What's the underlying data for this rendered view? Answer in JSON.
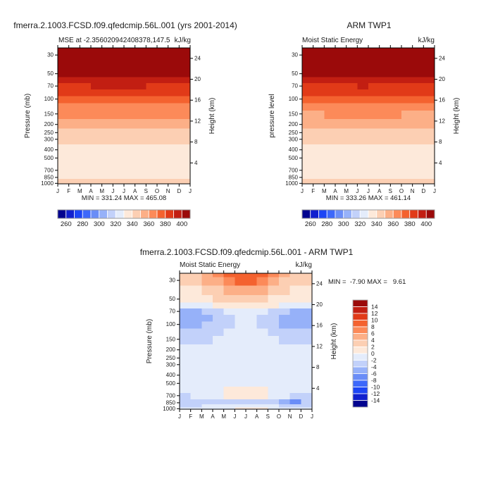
{
  "palette": [
    "#02038F",
    "#1020CE",
    "#1C45F5",
    "#3D68FA",
    "#6A8DF7",
    "#96B1F9",
    "#C2D1FA",
    "#E4ECFB",
    "#FDE9DA",
    "#FCCFB3",
    "#FCAF87",
    "#FC8A59",
    "#F4622F",
    "#E13A18",
    "#C21E12",
    "#9B0A0A"
  ],
  "frame_color": "#000000",
  "colorbar_border": "#999999",
  "chart_data": [
    {
      "id": "model-panel",
      "type": "contour",
      "title": "fmerra.2.1003.FCSD.f09.qfedcmip.56L.001 (yrs 2001-2014)",
      "subtitle_left": "MSE at -2.356020942408378,147.5",
      "subtitle_right": "kJ/kg",
      "stats": "MIN = 331.24 MAX = 465.08",
      "ylabel_left": "Pressure (mb)",
      "ylabel_right": "Height (km)",
      "x_tick_labels": [
        "J",
        "F",
        "M",
        "A",
        "M",
        "J",
        "J",
        "A",
        "S",
        "O",
        "N",
        "D",
        "J"
      ],
      "pressure_ticks": [
        30,
        50,
        70,
        100,
        150,
        200,
        250,
        300,
        400,
        500,
        700,
        850,
        1000
      ],
      "height_ticks": [
        4,
        8,
        12,
        16,
        20,
        24
      ],
      "colorbar": {
        "orientation": "horizontal",
        "boundaries": [
          260,
          270,
          280,
          290,
          300,
          310,
          320,
          330,
          340,
          350,
          360,
          370,
          380,
          390,
          400
        ],
        "labels": [
          260,
          280,
          300,
          320,
          340,
          360,
          380,
          400
        ]
      },
      "levels_mb": [
        25,
        30,
        40,
        50,
        60,
        70,
        85,
        100,
        125,
        150,
        200,
        250,
        300,
        400,
        500,
        600,
        700,
        850,
        925,
        1000
      ],
      "values": [
        [
          452,
          454,
          456,
          458,
          459,
          460,
          459,
          458,
          457,
          456,
          454,
          452
        ],
        [
          442,
          444,
          446,
          448,
          450,
          451,
          450,
          449,
          448,
          446,
          444,
          442
        ],
        [
          420,
          422,
          424,
          426,
          427,
          428,
          427,
          426,
          425,
          424,
          422,
          420
        ],
        [
          402,
          404,
          406,
          407,
          408,
          408,
          408,
          407,
          406,
          405,
          404,
          402
        ],
        [
          394,
          395,
          396,
          397,
          398,
          398,
          398,
          397,
          396,
          395,
          394,
          394
        ],
        [
          388,
          388,
          389,
          390,
          390,
          391,
          390,
          390,
          389,
          389,
          388,
          388
        ],
        [
          381,
          381,
          382,
          382,
          383,
          383,
          383,
          382,
          382,
          381,
          381,
          381
        ],
        [
          375,
          375,
          376,
          376,
          377,
          377,
          377,
          376,
          376,
          375,
          375,
          375
        ],
        [
          367,
          367,
          368,
          368,
          368,
          369,
          368,
          368,
          368,
          367,
          367,
          367
        ],
        [
          360,
          360,
          361,
          361,
          361,
          362,
          361,
          361,
          361,
          360,
          360,
          360
        ],
        [
          351,
          351,
          351,
          352,
          352,
          352,
          352,
          352,
          351,
          351,
          351,
          351
        ],
        [
          346,
          346,
          347,
          347,
          347,
          347,
          347,
          347,
          347,
          346,
          346,
          346
        ],
        [
          342,
          342,
          343,
          343,
          343,
          344,
          344,
          343,
          343,
          342,
          342,
          342
        ],
        [
          337,
          337,
          338,
          338,
          339,
          339,
          339,
          339,
          338,
          337,
          337,
          337
        ],
        [
          334,
          334,
          335,
          335,
          336,
          336,
          336,
          336,
          335,
          334,
          334,
          334
        ],
        [
          332,
          332,
          333,
          333,
          334,
          334,
          334,
          334,
          333,
          332,
          332,
          332
        ],
        [
          331,
          332,
          332,
          333,
          333,
          334,
          334,
          333,
          333,
          332,
          332,
          331
        ],
        [
          335,
          335,
          336,
          336,
          337,
          337,
          337,
          337,
          336,
          336,
          335,
          335
        ],
        [
          340,
          340,
          341,
          341,
          342,
          342,
          342,
          341,
          341,
          340,
          340,
          340
        ],
        [
          345,
          345,
          346,
          346,
          347,
          347,
          347,
          346,
          346,
          345,
          345,
          345
        ]
      ]
    },
    {
      "id": "obs-panel",
      "type": "contour",
      "title": "ARM TWP1",
      "subtitle_left": "Moist Static Energy",
      "subtitle_right": "kJ/kg",
      "stats": "MIN = 333.26 MAX = 461.14",
      "ylabel_left": "pressure level",
      "ylabel_right": "Height (km)",
      "x_tick_labels": [
        "J",
        "F",
        "M",
        "A",
        "M",
        "J",
        "J",
        "A",
        "S",
        "O",
        "N",
        "D",
        "J"
      ],
      "pressure_ticks": [
        30,
        50,
        70,
        100,
        150,
        200,
        250,
        300,
        400,
        500,
        700,
        850,
        1000
      ],
      "height_ticks": [
        4,
        8,
        12,
        16,
        20,
        24
      ],
      "colorbar": {
        "orientation": "horizontal",
        "boundaries": [
          260,
          270,
          280,
          290,
          300,
          310,
          320,
          330,
          340,
          350,
          360,
          370,
          380,
          390,
          400
        ],
        "labels": [
          260,
          280,
          300,
          320,
          340,
          360,
          380,
          400
        ]
      },
      "levels_mb": [
        25,
        30,
        40,
        50,
        60,
        70,
        85,
        100,
        125,
        150,
        200,
        250,
        300,
        400,
        500,
        600,
        700,
        850,
        925,
        1000
      ],
      "values": [
        [
          450,
          452,
          454,
          456,
          457,
          458,
          457,
          456,
          455,
          454,
          452,
          450
        ],
        [
          440,
          442,
          444,
          446,
          448,
          449,
          448,
          447,
          446,
          444,
          442,
          440
        ],
        [
          419,
          421,
          423,
          425,
          426,
          427,
          426,
          425,
          424,
          423,
          421,
          419
        ],
        [
          401,
          403,
          405,
          406,
          407,
          407,
          407,
          406,
          405,
          404,
          403,
          401
        ],
        [
          393,
          394,
          395,
          396,
          397,
          397,
          397,
          396,
          395,
          394,
          393,
          393
        ],
        [
          387,
          387,
          388,
          389,
          389,
          390,
          389,
          389,
          388,
          388,
          387,
          387
        ],
        [
          380,
          380,
          381,
          381,
          382,
          382,
          382,
          381,
          381,
          380,
          380,
          380
        ],
        [
          374,
          374,
          375,
          375,
          376,
          376,
          376,
          375,
          375,
          374,
          374,
          374
        ],
        [
          366,
          366,
          367,
          367,
          368,
          368,
          368,
          367,
          367,
          366,
          366,
          366
        ],
        [
          359,
          359,
          360,
          360,
          361,
          361,
          361,
          360,
          360,
          359,
          359,
          359
        ],
        [
          350,
          350,
          351,
          351,
          352,
          352,
          352,
          351,
          351,
          350,
          350,
          350
        ],
        [
          345,
          346,
          346,
          347,
          347,
          347,
          347,
          347,
          346,
          346,
          345,
          345
        ],
        [
          342,
          342,
          343,
          343,
          343,
          343,
          343,
          343,
          343,
          342,
          342,
          342
        ],
        [
          337,
          337,
          338,
          338,
          338,
          339,
          339,
          338,
          338,
          337,
          337,
          337
        ],
        [
          334,
          334,
          335,
          335,
          335,
          336,
          336,
          335,
          335,
          334,
          334,
          334
        ],
        [
          333,
          333,
          333,
          334,
          334,
          334,
          334,
          334,
          333,
          333,
          333,
          333
        ],
        [
          333,
          333,
          334,
          334,
          334,
          335,
          335,
          334,
          334,
          333,
          333,
          333
        ],
        [
          336,
          336,
          337,
          337,
          338,
          338,
          338,
          337,
          337,
          336,
          336,
          336
        ],
        [
          341,
          341,
          342,
          342,
          343,
          343,
          343,
          342,
          342,
          341,
          341,
          341
        ],
        [
          346,
          346,
          347,
          347,
          348,
          348,
          348,
          347,
          347,
          346,
          346,
          346
        ]
      ]
    },
    {
      "id": "diff-panel",
      "type": "contour",
      "title": "fmerra.2.1003.FCSD.f09.qfedcmip.56L.001 - ARM TWP1",
      "subtitle_left": "Moist Static Energy",
      "subtitle_right": "kJ/kg",
      "stats": "MIN =  -7.90 MAX =   9.61",
      "ylabel_left": "Pressure (mb)",
      "ylabel_right": "Height (km)",
      "x_tick_labels": [
        "J",
        "F",
        "M",
        "A",
        "M",
        "J",
        "J",
        "A",
        "S",
        "O",
        "N",
        "D",
        "J"
      ],
      "pressure_ticks": [
        30,
        50,
        70,
        100,
        150,
        200,
        250,
        300,
        400,
        500,
        700,
        850,
        1000
      ],
      "height_ticks": [
        4,
        8,
        12,
        16,
        20,
        24
      ],
      "colorbar": {
        "orientation": "vertical",
        "boundaries": [
          -14,
          -12,
          -10,
          -8,
          -6,
          -4,
          -2,
          0,
          2,
          4,
          6,
          8,
          10,
          12,
          14
        ],
        "labels": [
          14,
          12,
          10,
          8,
          6,
          4,
          2,
          0,
          -2,
          -4,
          -6,
          -8,
          -10,
          -12,
          -14
        ]
      },
      "levels_mb": [
        25,
        30,
        40,
        50,
        60,
        70,
        85,
        100,
        125,
        150,
        200,
        250,
        300,
        400,
        500,
        600,
        700,
        850,
        925,
        1000
      ],
      "values": [
        [
          3,
          3,
          5,
          7,
          9,
          9,
          9,
          9,
          7,
          5,
          3,
          3
        ],
        [
          3,
          3,
          5,
          5,
          7,
          9,
          9,
          7,
          5,
          3,
          3,
          3
        ],
        [
          1,
          1,
          3,
          3,
          5,
          5,
          5,
          5,
          3,
          3,
          1,
          1
        ],
        [
          1,
          1,
          1,
          3,
          3,
          3,
          3,
          3,
          1,
          1,
          1,
          1
        ],
        [
          -1,
          -1,
          -1,
          1,
          1,
          1,
          1,
          1,
          1,
          -1,
          -1,
          -1
        ],
        [
          -5,
          -5,
          -3,
          -3,
          -1,
          -1,
          -1,
          -1,
          -3,
          -3,
          -5,
          -5
        ],
        [
          -5,
          -5,
          -5,
          -3,
          -3,
          -1,
          -1,
          -3,
          -3,
          -5,
          -5,
          -5
        ],
        [
          -5,
          -5,
          -3,
          -3,
          -3,
          -1,
          -1,
          -3,
          -3,
          -5,
          -5,
          -5
        ],
        [
          -3,
          -3,
          -3,
          -3,
          -1,
          -1,
          -1,
          -1,
          -3,
          -3,
          -3,
          -3
        ],
        [
          -3,
          -3,
          -3,
          -1,
          -1,
          -1,
          -1,
          -1,
          -1,
          -3,
          -3,
          -3
        ],
        [
          -1,
          -1,
          -1,
          -1,
          -1,
          -1,
          -1,
          -1,
          -1,
          -1,
          -1,
          -1
        ],
        [
          -1,
          -1,
          -1,
          -1,
          -1,
          -1,
          -1,
          -1,
          -1,
          -1,
          -1,
          -1
        ],
        [
          -1,
          -1,
          -1,
          -1,
          -1,
          -1,
          -1,
          -1,
          -1,
          -1,
          -1,
          -1
        ],
        [
          -1,
          -1,
          -1,
          -1,
          -1,
          -1,
          -1,
          -1,
          -1,
          -1,
          -1,
          -1
        ],
        [
          -1,
          -1,
          -1,
          -1,
          -1,
          -1,
          -1,
          -1,
          -1,
          -1,
          -1,
          -1
        ],
        [
          -1,
          -1,
          -1,
          -1,
          1,
          1,
          1,
          1,
          -1,
          -1,
          -1,
          -1
        ],
        [
          -3,
          -1,
          -1,
          -1,
          1,
          1,
          1,
          1,
          -1,
          -1,
          -3,
          -3
        ],
        [
          -3,
          -3,
          -3,
          -3,
          -3,
          -3,
          -3,
          -3,
          -3,
          -5,
          -7,
          -3
        ],
        [
          -3,
          -3,
          -1,
          -1,
          -1,
          -1,
          -1,
          -1,
          -1,
          -3,
          -3,
          -3
        ],
        [
          -1,
          -1,
          -1,
          -1,
          -1,
          1,
          1,
          1,
          -1,
          -1,
          -1,
          -1
        ]
      ]
    }
  ]
}
